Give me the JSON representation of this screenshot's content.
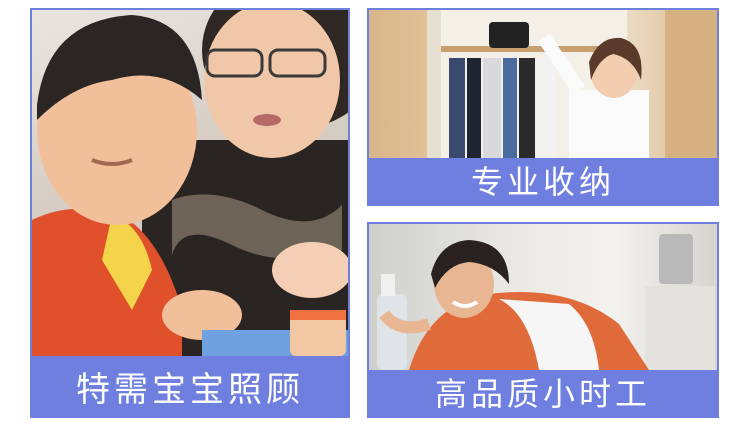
{
  "cards": [
    {
      "label": "特需宝宝照顾",
      "photo": "caregiver-with-child-photo"
    },
    {
      "label": "专业收纳",
      "photo": "woman-organizing-wardrobe-photo"
    },
    {
      "label": "高品质小时工",
      "photo": "woman-cleaning-table-photo"
    }
  ],
  "colors": {
    "label_background": "#6f7fe0",
    "label_text": "#ffffff"
  }
}
